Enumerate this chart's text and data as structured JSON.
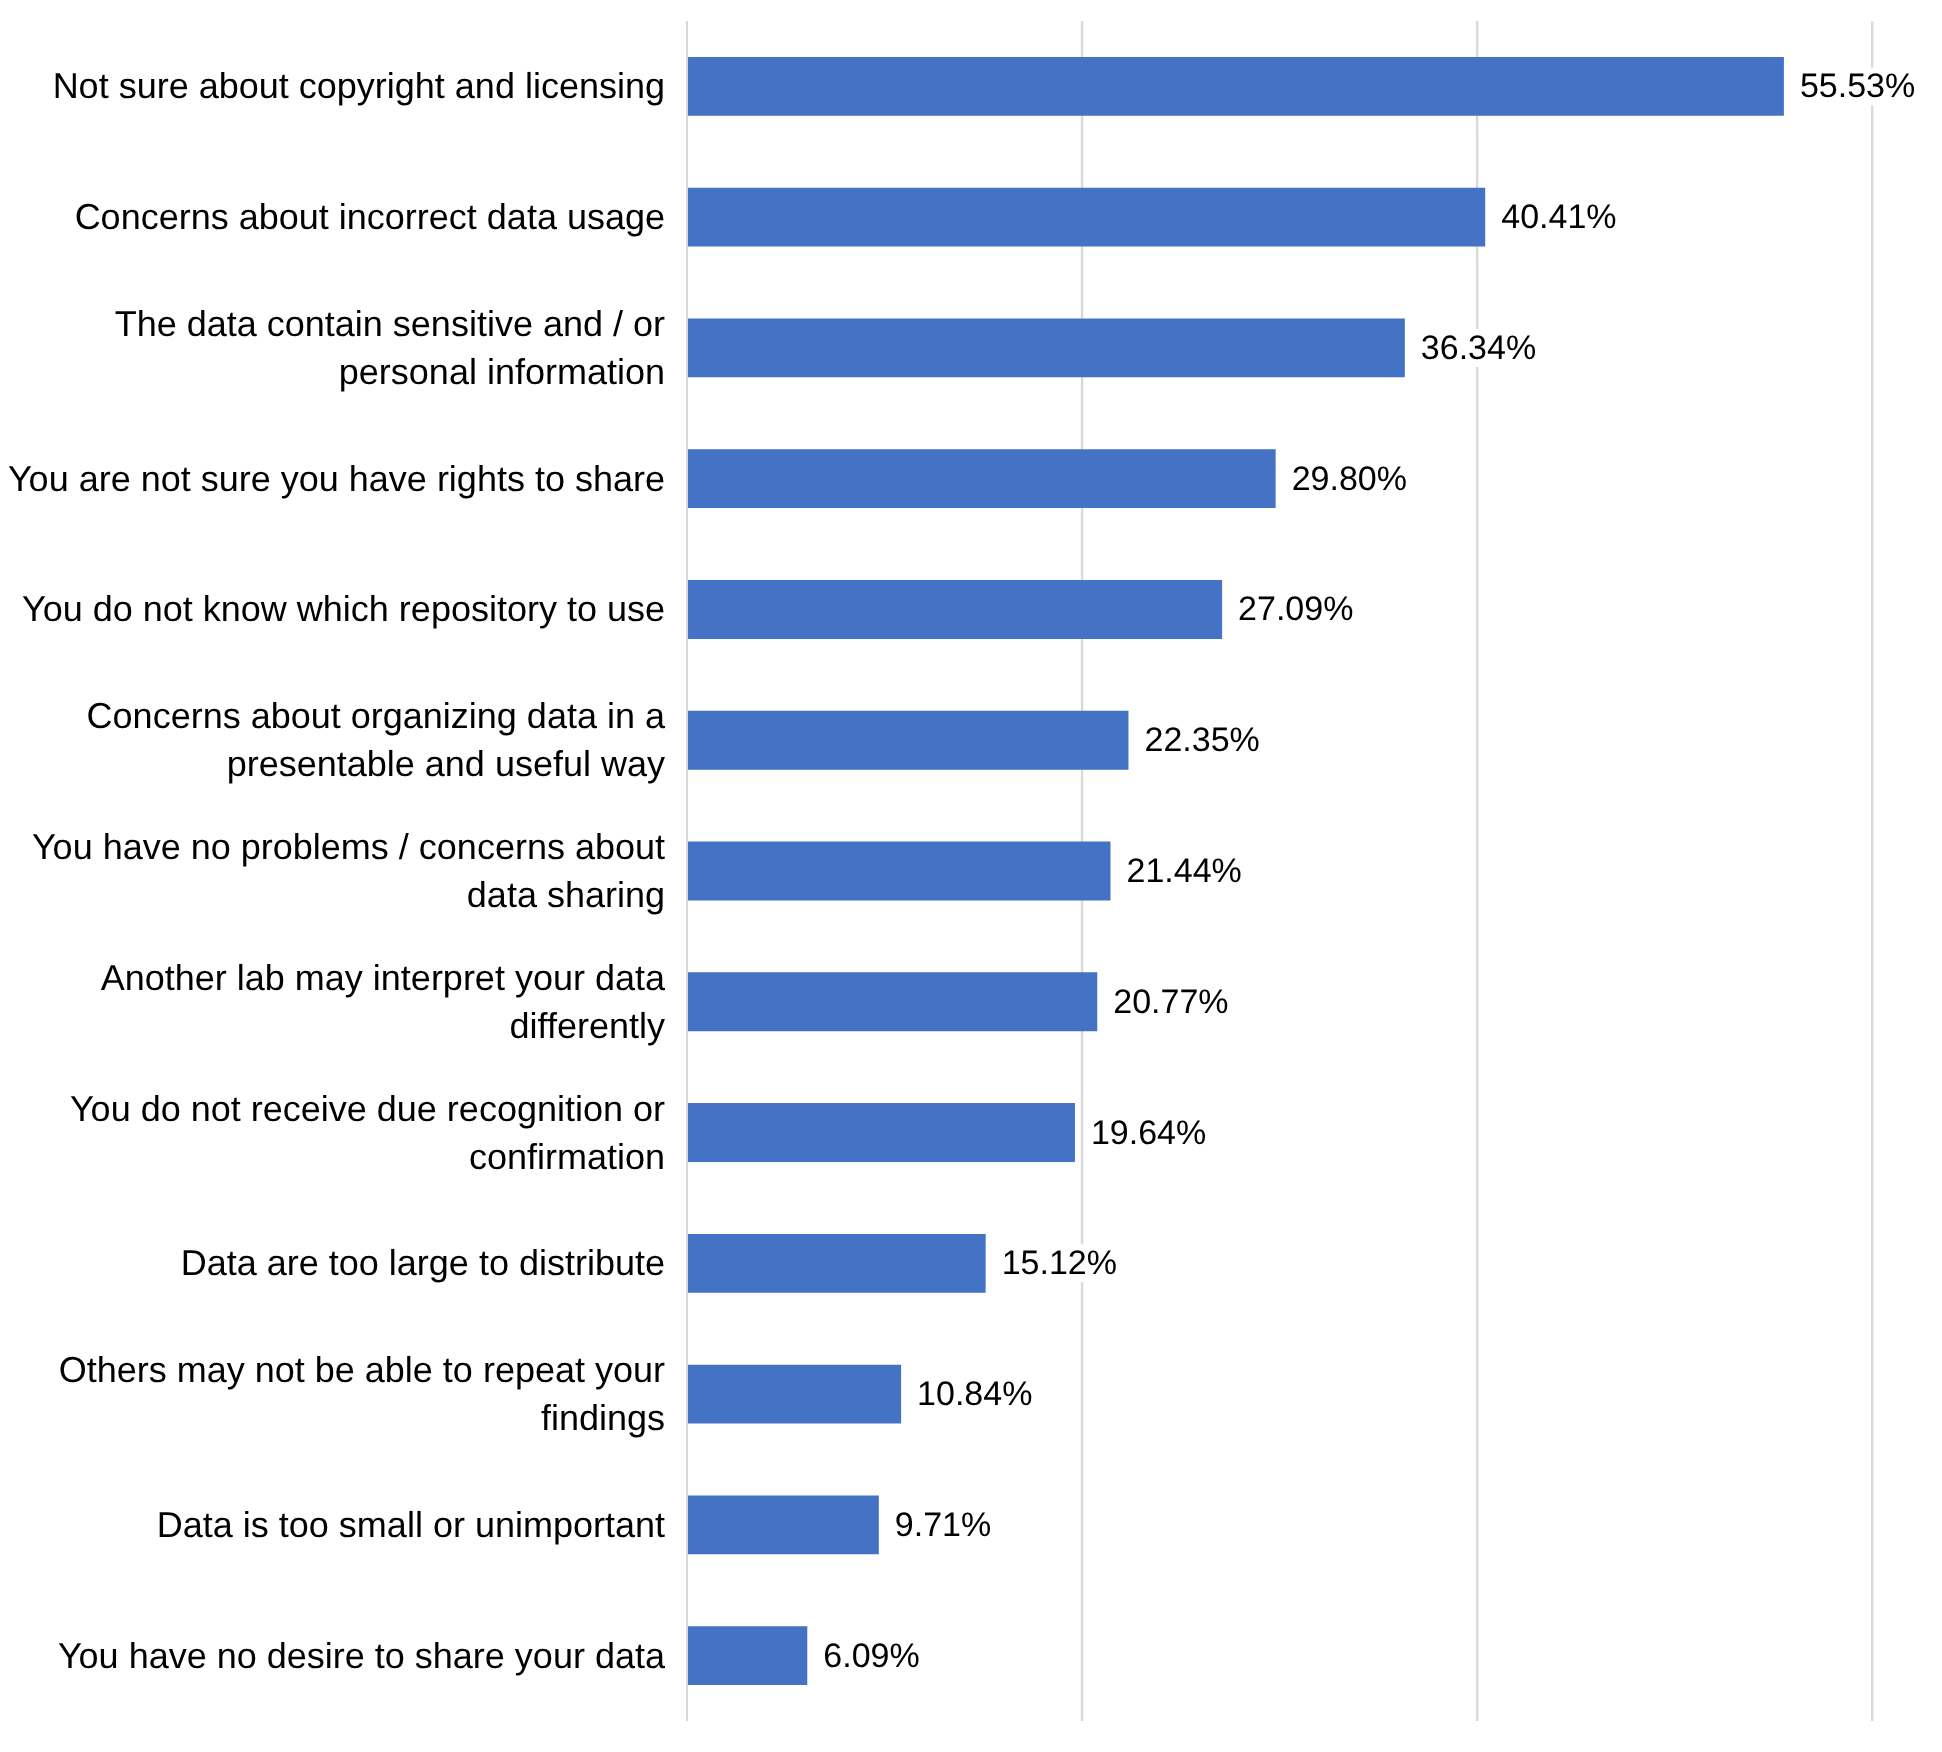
{
  "chart_data": {
    "type": "bar",
    "orientation": "horizontal",
    "categories": [
      "Not sure about copyright and licensing",
      "Concerns about incorrect data usage",
      "The data contain sensitive and / or\npersonal information",
      "You are not sure you have rights to share",
      "You do not know which repository to use",
      "Concerns about organizing data in a\npresentable and useful way",
      "You have no problems / concerns about\ndata sharing",
      "Another lab may interpret your data\ndifferently",
      "You do not receive due recognition or\nconfirmation",
      "Data are too large to distribute",
      "Others may not be able to repeat your\nfindings",
      "Data is too small or unimportant",
      "You have no desire to share your data"
    ],
    "values": [
      55.53,
      40.41,
      36.34,
      29.8,
      27.09,
      22.35,
      21.44,
      20.77,
      19.64,
      15.12,
      10.84,
      9.71,
      6.09
    ],
    "value_labels": [
      "55.53%",
      "40.41%",
      "36.34%",
      "29.80%",
      "27.09%",
      "22.35%",
      "21.44%",
      "20.77%",
      "19.64%",
      "15.12%",
      "10.84%",
      "9.71%",
      "6.09%"
    ],
    "color": "#4472c4",
    "tick_labels": "y",
    "ref_lines": [
      {
        "axis": "x",
        "value": 20,
        "color": "#d9d9d9"
      },
      {
        "axis": "x",
        "value": 40,
        "color": "#d9d9d9"
      },
      {
        "axis": "x",
        "value": 60,
        "color": "#d9d9d9"
      }
    ]
  }
}
